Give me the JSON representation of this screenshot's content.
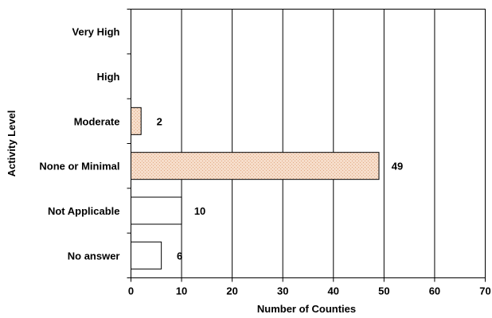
{
  "chart_data": {
    "type": "bar",
    "orientation": "horizontal",
    "title": "",
    "xlabel": "Number of Counties",
    "ylabel": "Activity Level",
    "xlim": [
      0,
      70
    ],
    "x_ticks": [
      "0",
      "10",
      "20",
      "30",
      "40",
      "50",
      "60",
      "70"
    ],
    "grid": "vertical gridlines",
    "legend": "none",
    "categories": [
      "Very High",
      "High",
      "Moderate",
      "None or Minimal",
      "Not Applicable",
      "No answer"
    ],
    "values": [
      null,
      null,
      2,
      49,
      10,
      6
    ],
    "data_labels": [
      "",
      "",
      "2",
      "49",
      "10",
      "6"
    ],
    "bar_fills": [
      "dotted",
      "dotted",
      "dotted",
      "dotted",
      "white",
      "white"
    ],
    "colors": {
      "dotted_bar": "#f6ddca",
      "dotted_bar_dots": "#e2ab86",
      "plain_bar": "#ffffff",
      "outline": "#000000",
      "background": "#ffffff"
    }
  }
}
